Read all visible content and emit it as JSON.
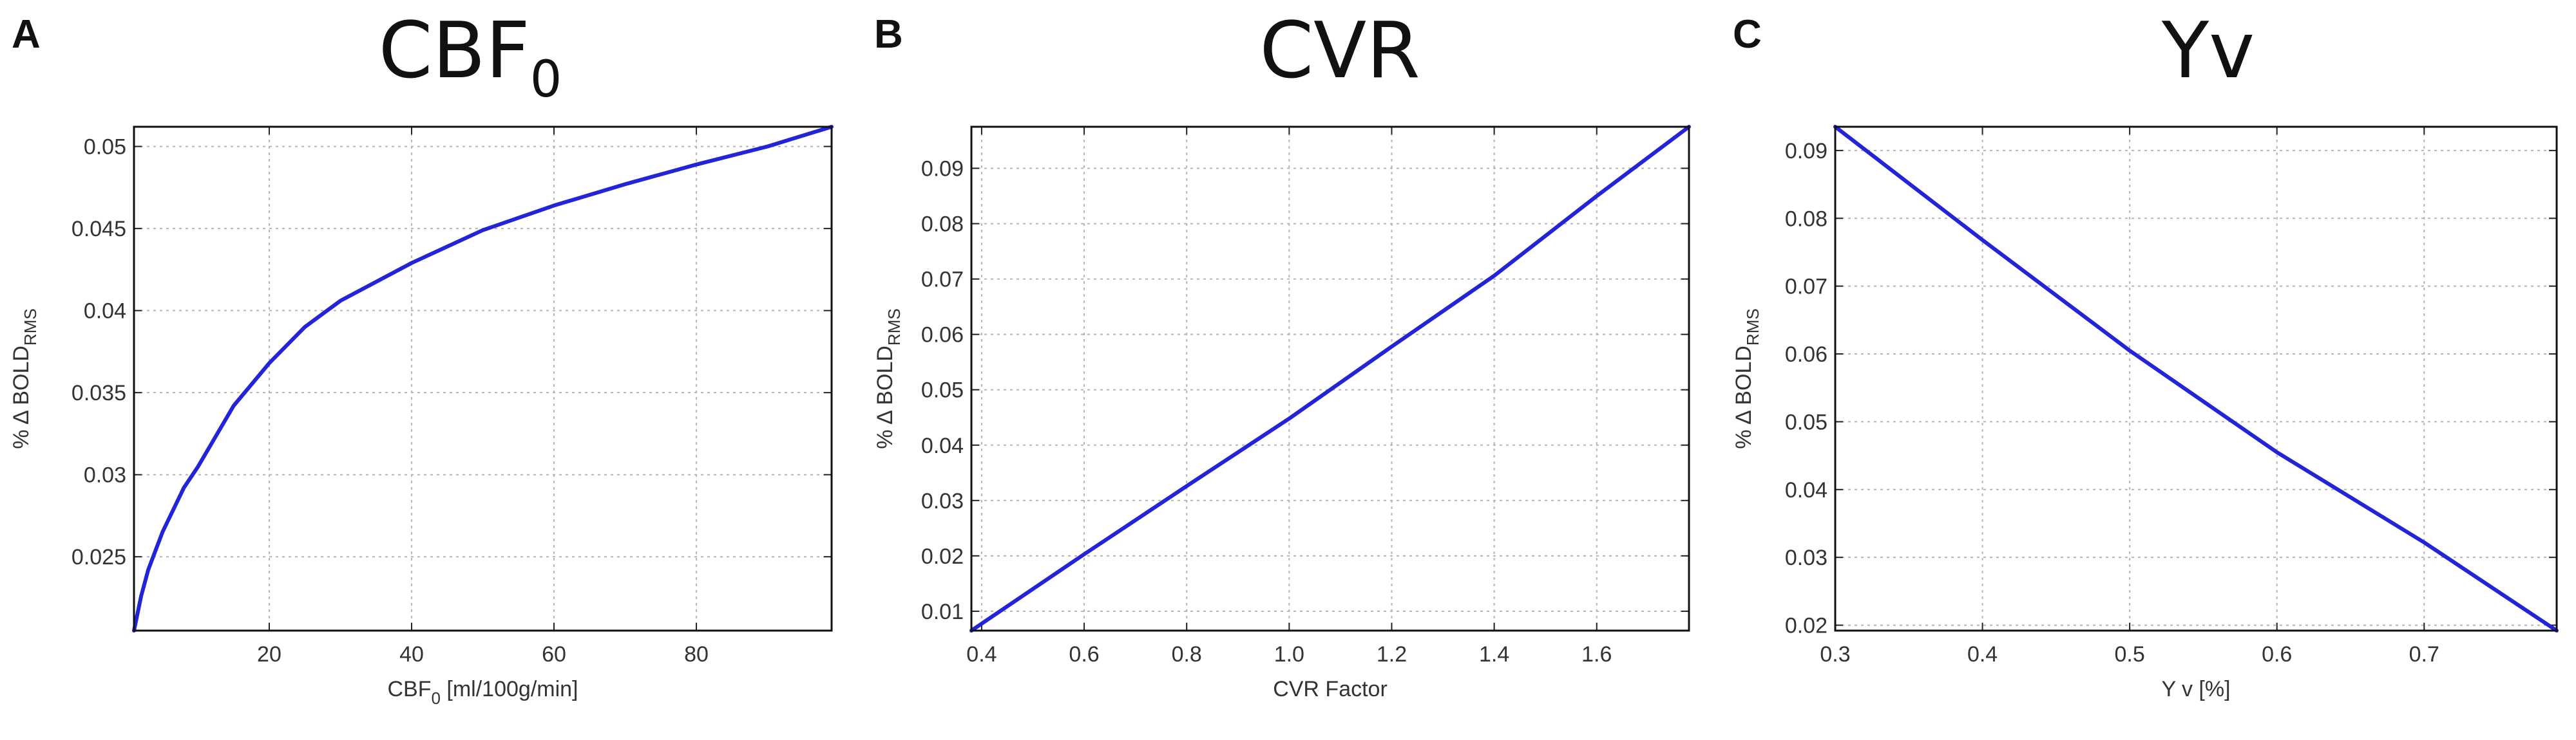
{
  "charts": [
    {
      "letter": "A",
      "title_main": "CBF",
      "title_sub": "0",
      "xlabel_main": "CBF",
      "xlabel_sub": "0",
      "xlabel_rest": " [ml/100g/min]",
      "ylabel_main": "% Δ BOLD",
      "ylabel_sub": "RMS"
    },
    {
      "letter": "B",
      "title_main": "CVR",
      "title_sub": "",
      "xlabel_main": "CVR Factor",
      "xlabel_sub": "",
      "xlabel_rest": "",
      "ylabel_main": "% Δ BOLD",
      "ylabel_sub": "RMS"
    },
    {
      "letter": "C",
      "title_main": "Yv",
      "title_sub": "",
      "xlabel_main": "Y v [%]",
      "xlabel_sub": "",
      "xlabel_rest": "",
      "ylabel_main": "% Δ BOLD",
      "ylabel_sub": "RMS"
    }
  ],
  "chart_data": [
    {
      "type": "line",
      "title": "CBF0",
      "xlabel": "CBF0 [ml/100g/min]",
      "ylabel": "% Δ BOLD RMS",
      "xlim": [
        1,
        99
      ],
      "ylim": [
        0.0205,
        0.0512
      ],
      "xticks": [
        20,
        40,
        60,
        80
      ],
      "xtick_labels": [
        "20",
        "40",
        "60",
        "80"
      ],
      "yticks": [
        0.025,
        0.03,
        0.035,
        0.04,
        0.045,
        0.05
      ],
      "ytick_labels": [
        "0.025",
        "0.03",
        "0.035",
        "0.04",
        "0.045",
        "0.05"
      ],
      "grid": true,
      "color": "#2323d8",
      "x": [
        1,
        2,
        3,
        5,
        8,
        10,
        15,
        20,
        25,
        30,
        40,
        50,
        60,
        70,
        80,
        90,
        99
      ],
      "y": [
        0.0205,
        0.0226,
        0.0242,
        0.0265,
        0.0292,
        0.0305,
        0.0342,
        0.0368,
        0.039,
        0.0406,
        0.0429,
        0.0449,
        0.0464,
        0.0477,
        0.0489,
        0.05,
        0.0512
      ]
    },
    {
      "type": "line",
      "title": "CVR",
      "xlabel": "CVR Factor",
      "ylabel": "% Δ BOLD RMS",
      "xlim": [
        0.38,
        1.78
      ],
      "ylim": [
        0.0065,
        0.0975
      ],
      "xticks": [
        0.4,
        0.6,
        0.8,
        1.0,
        1.2,
        1.4,
        1.6
      ],
      "xtick_labels": [
        "0.4",
        "0.6",
        "0.8",
        "1.0",
        "1.2",
        "1.4",
        "1.6"
      ],
      "yticks": [
        0.01,
        0.02,
        0.03,
        0.04,
        0.05,
        0.06,
        0.07,
        0.08,
        0.09
      ],
      "ytick_labels": [
        "0.01",
        "0.02",
        "0.03",
        "0.04",
        "0.05",
        "0.06",
        "0.07",
        "0.08",
        "0.09"
      ],
      "grid": true,
      "color": "#2323d8",
      "x": [
        0.38,
        0.6,
        0.8,
        1.0,
        1.2,
        1.4,
        1.6,
        1.78
      ],
      "y": [
        0.0065,
        0.0203,
        0.0326,
        0.0448,
        0.0578,
        0.0706,
        0.085,
        0.0975
      ]
    },
    {
      "type": "line",
      "title": "Yv",
      "xlabel": "Y v [%]",
      "ylabel": "% Δ BOLD RMS",
      "xlim": [
        0.3,
        0.79
      ],
      "ylim": [
        0.0192,
        0.0935
      ],
      "xticks": [
        0.3,
        0.4,
        0.5,
        0.6,
        0.7
      ],
      "xtick_labels": [
        "0.3",
        "0.4",
        "0.5",
        "0.6",
        "0.7"
      ],
      "yticks": [
        0.02,
        0.03,
        0.04,
        0.05,
        0.06,
        0.07,
        0.08,
        0.09
      ],
      "ytick_labels": [
        "0.02",
        "0.03",
        "0.04",
        "0.05",
        "0.06",
        "0.07",
        "0.08",
        "0.09"
      ],
      "grid": true,
      "color": "#2323d8",
      "x": [
        0.3,
        0.4,
        0.5,
        0.6,
        0.7,
        0.79
      ],
      "y": [
        0.0935,
        0.0768,
        0.0605,
        0.0455,
        0.0322,
        0.0192
      ]
    }
  ]
}
